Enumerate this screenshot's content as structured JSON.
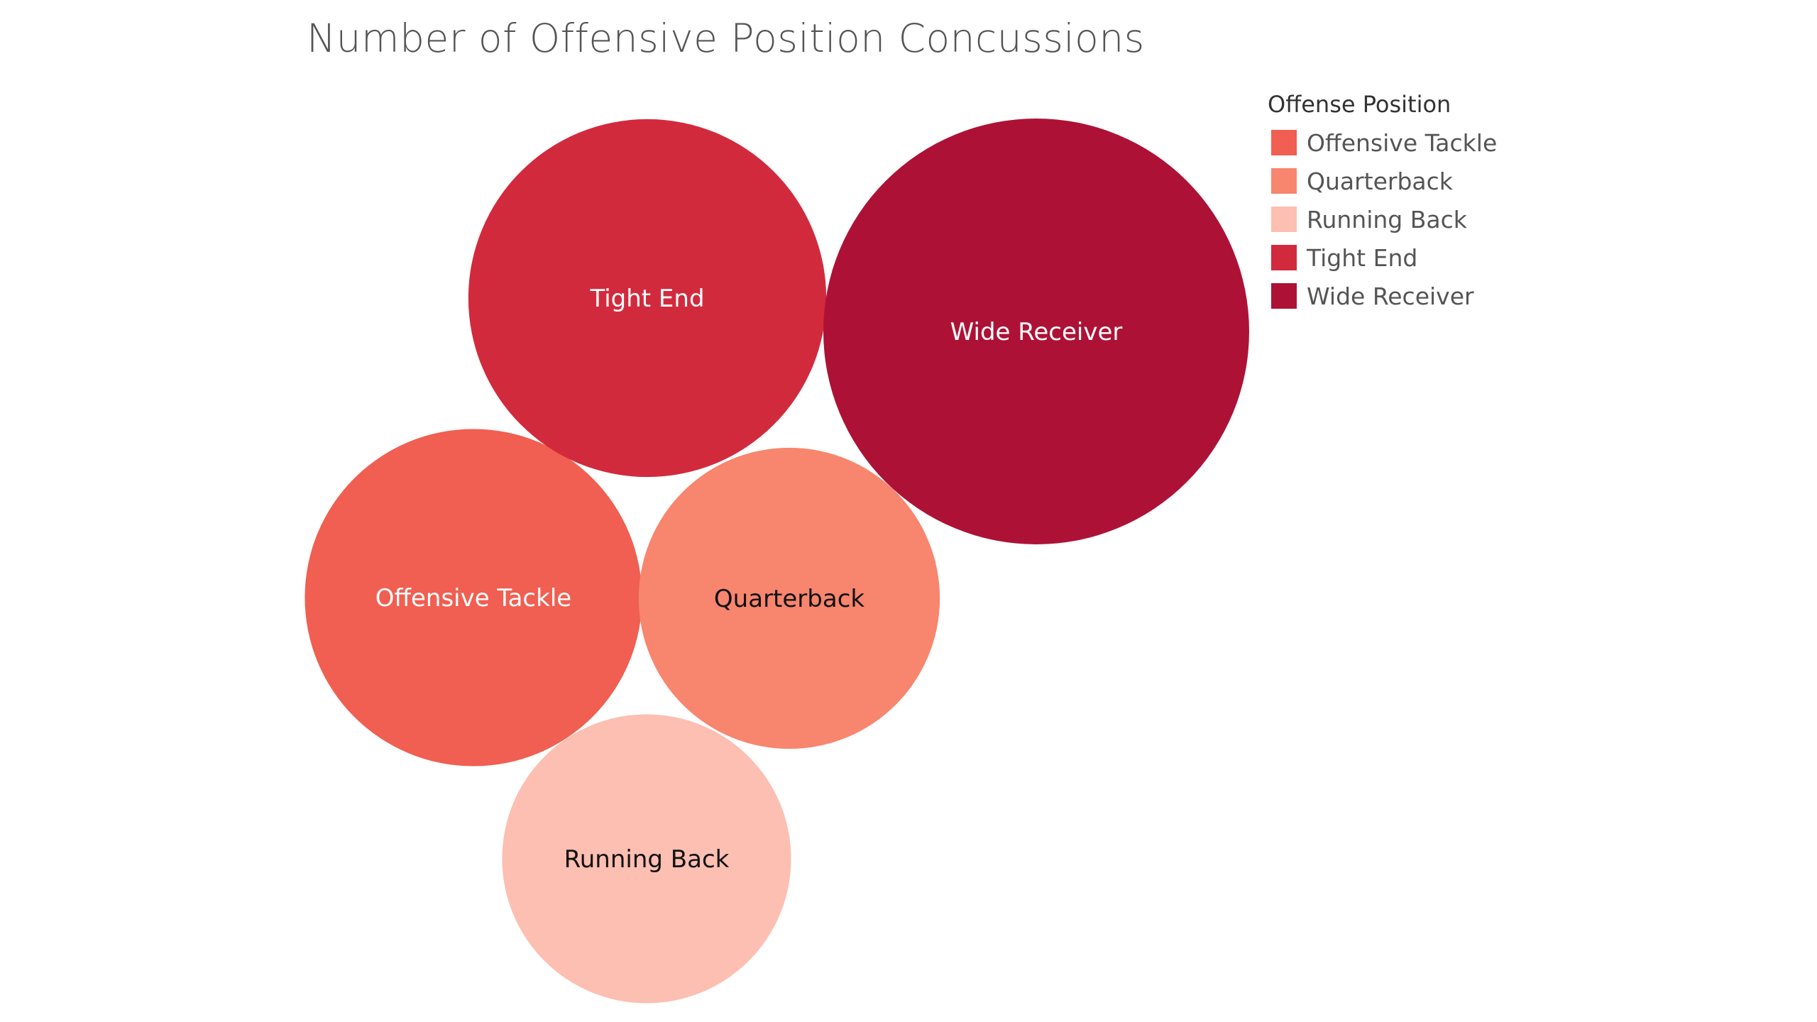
{
  "chart_data": {
    "type": "bubble",
    "title": "Number of Offensive Position Concussions",
    "legend_title": "Offense Position",
    "legend_position": "top-right",
    "series": [
      {
        "name": "Offensive Tackle",
        "value": 79,
        "color": "#f05f51",
        "label_color": "#ffffff"
      },
      {
        "name": "Quarterback",
        "value": 63,
        "color": "#f8856e",
        "label_color": "#111111"
      },
      {
        "name": "Running Back",
        "value": 58,
        "color": "#fcbfb1",
        "label_color": "#111111"
      },
      {
        "name": "Tight End",
        "value": 89,
        "color": "#d22a3d",
        "label_color": "#ffffff"
      },
      {
        "name": "Wide Receiver",
        "value": 126,
        "color": "#ad1236",
        "label_color": "#ffffff"
      }
    ]
  }
}
